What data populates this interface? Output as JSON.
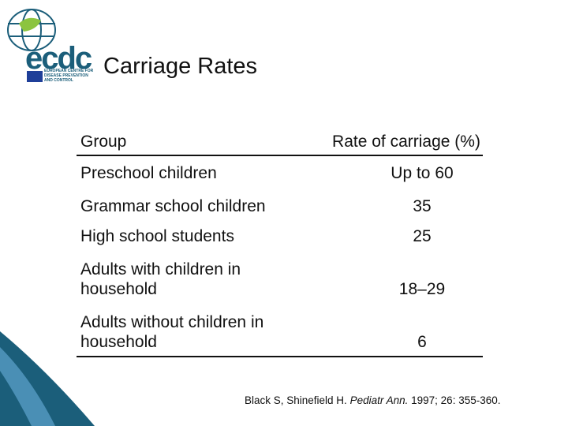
{
  "logo": {
    "mark": "ecdc",
    "caption": "EUROPEAN CENTRE FOR DISEASE PREVENTION AND CONTROL"
  },
  "header": {
    "title": "Carriage Rates"
  },
  "table": {
    "columns": [
      "Group",
      "Rate of carriage (%)"
    ],
    "rows": [
      [
        "Preschool children",
        "Up to 60"
      ],
      [
        "Grammar school children",
        "35"
      ],
      [
        "High school students",
        "25"
      ],
      [
        "Adults with children in household",
        "18–29"
      ],
      [
        "Adults without children in household",
        "6"
      ]
    ]
  },
  "citation": {
    "authors": "Black S, Shinefield H.",
    "journal": "Pediatr Ann.",
    "rest": "1997; 26: 355-360."
  }
}
